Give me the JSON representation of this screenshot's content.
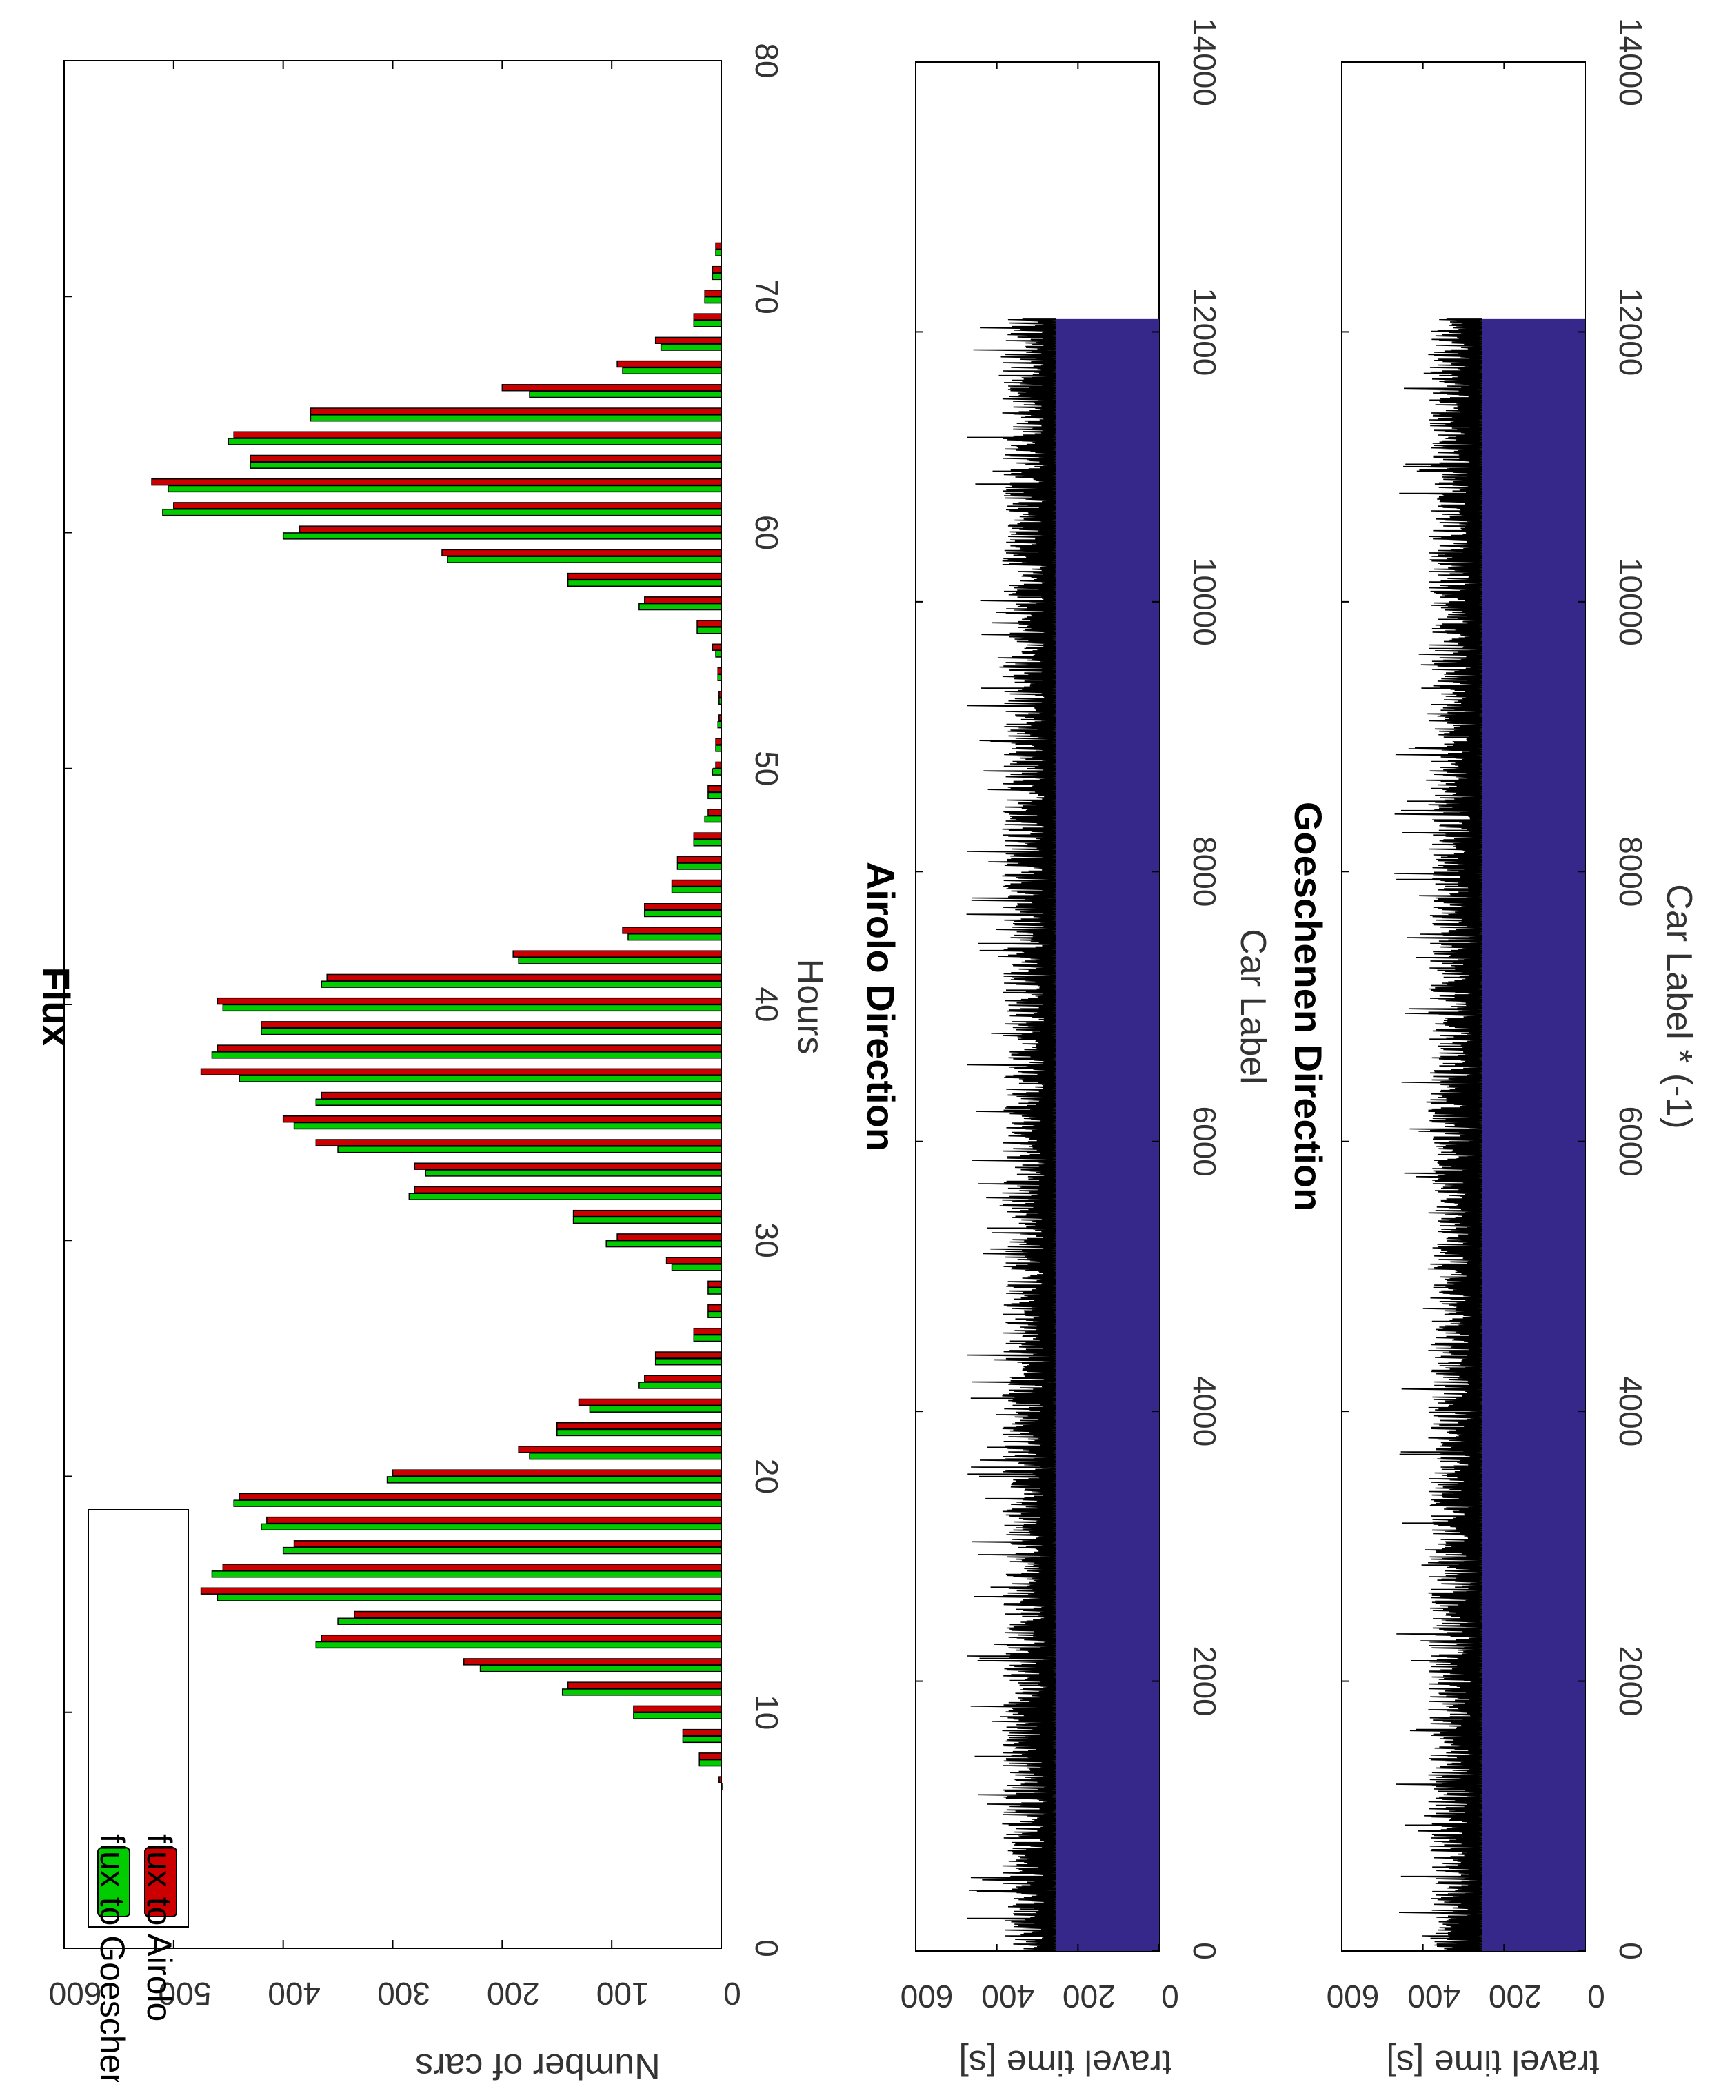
{
  "colors": {
    "goeschenen": "#00cc00",
    "airolo": "#cc0000",
    "area_fill": "#35288a",
    "noise": "#000000"
  },
  "chart_data": [
    {
      "type": "bar",
      "orientation": "rotated 90 degrees clockwise",
      "title": "Flux",
      "xlabel": "Hours",
      "ylabel": "Number of cars",
      "xlim": [
        0,
        80
      ],
      "ylim": [
        0,
        600
      ],
      "xticks": [
        "0",
        "10",
        "20",
        "30",
        "40",
        "50",
        "60",
        "70",
        "80"
      ],
      "yticks": [
        "0",
        "100",
        "200",
        "300",
        "400",
        "500",
        "600"
      ],
      "legend_position": "top-left",
      "series": [
        {
          "name": "flux to Goeschenen",
          "color": "#00cc00",
          "x": [
            7,
            8,
            9,
            10,
            11,
            12,
            13,
            14,
            15,
            16,
            17,
            18,
            19,
            20,
            21,
            22,
            23,
            24,
            25,
            26,
            27,
            28,
            29,
            30,
            31,
            32,
            33,
            34,
            35,
            36,
            37,
            38,
            39,
            40,
            41,
            42,
            43,
            44,
            45,
            46,
            47,
            48,
            49,
            50,
            51,
            52,
            53,
            54,
            55,
            56,
            57,
            58,
            59,
            60,
            61,
            62,
            63,
            64,
            65,
            66,
            67,
            68,
            69,
            70,
            71,
            72
          ],
          "values": [
            0,
            20,
            35,
            80,
            145,
            220,
            370,
            350,
            460,
            465,
            400,
            420,
            445,
            305,
            175,
            150,
            120,
            75,
            60,
            25,
            12,
            12,
            45,
            105,
            135,
            285,
            270,
            350,
            390,
            370,
            440,
            465,
            420,
            455,
            365,
            185,
            85,
            70,
            45,
            40,
            25,
            15,
            12,
            8,
            5,
            3,
            2,
            3,
            5,
            22,
            75,
            140,
            250,
            400,
            510,
            505,
            430,
            450,
            375,
            175,
            90,
            55,
            25,
            15,
            8,
            5
          ]
        },
        {
          "name": "flux to Airolo",
          "color": "#cc0000",
          "x": [
            7,
            8,
            9,
            10,
            11,
            12,
            13,
            14,
            15,
            16,
            17,
            18,
            19,
            20,
            21,
            22,
            23,
            24,
            25,
            26,
            27,
            28,
            29,
            30,
            31,
            32,
            33,
            34,
            35,
            36,
            37,
            38,
            39,
            40,
            41,
            42,
            43,
            44,
            45,
            46,
            47,
            48,
            49,
            50,
            51,
            52,
            53,
            54,
            55,
            56,
            57,
            58,
            59,
            60,
            61,
            62,
            63,
            64,
            65,
            66,
            67,
            68,
            69,
            70,
            71,
            72
          ],
          "values": [
            2,
            20,
            35,
            80,
            140,
            235,
            365,
            335,
            475,
            455,
            390,
            415,
            440,
            300,
            185,
            150,
            130,
            70,
            60,
            25,
            12,
            12,
            50,
            95,
            135,
            280,
            280,
            370,
            400,
            365,
            475,
            460,
            420,
            460,
            360,
            190,
            90,
            70,
            45,
            40,
            25,
            12,
            12,
            5,
            5,
            2,
            2,
            3,
            8,
            22,
            70,
            140,
            255,
            385,
            500,
            520,
            430,
            445,
            375,
            200,
            95,
            60,
            25,
            15,
            8,
            5
          ]
        }
      ]
    },
    {
      "type": "area",
      "orientation": "rotated 90 degrees clockwise",
      "title": "Airolo Direction",
      "xlabel": "Car Label",
      "ylabel": "travel time [s]",
      "xlim": [
        0,
        14000
      ],
      "ylim": [
        0,
        600
      ],
      "xticks": [
        "0",
        "2000",
        "4000",
        "6000",
        "8000",
        "10000",
        "12000",
        "14000"
      ],
      "yticks": [
        "0",
        "200",
        "400",
        "600"
      ],
      "n_cars": 12100,
      "baseline": 255,
      "mean_travel_time": 335,
      "max_travel_time": 475
    },
    {
      "type": "area",
      "orientation": "rotated 90 degrees clockwise",
      "title": "Goeschenen Direction",
      "xlabel": "Car Label * (-1)",
      "ylabel": "travel time [s]",
      "xlim": [
        0,
        14000
      ],
      "ylim": [
        0,
        600
      ],
      "xticks": [
        "0",
        "2000",
        "4000",
        "6000",
        "8000",
        "10000",
        "12000",
        "14000"
      ],
      "yticks": [
        "0",
        "200",
        "400",
        "600"
      ],
      "n_cars": 12100,
      "baseline": 255,
      "mean_travel_time": 335,
      "max_travel_time": 475
    }
  ]
}
